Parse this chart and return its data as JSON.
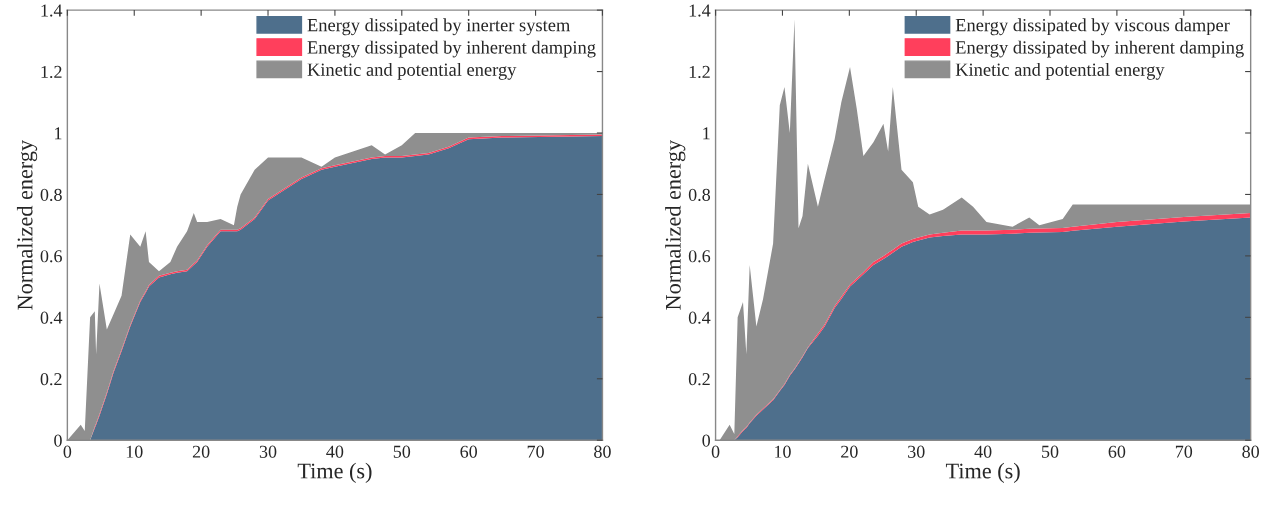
{
  "chart_data": [
    {
      "type": "area",
      "stacked": true,
      "xlabel": "Time (s)",
      "ylabel": "Normalized energy",
      "legend": "top right",
      "x": [
        0,
        2,
        2.6,
        3.4,
        4.1,
        4.3,
        4.8,
        5.9,
        6.9,
        8.1,
        9.4,
        10.9,
        11.7,
        12.2,
        13.7,
        15.4,
        16.4,
        17.9,
        18.9,
        19.4,
        20.9,
        22.9,
        24.9,
        25.4,
        25.9,
        28,
        30,
        35,
        38,
        40,
        45.5,
        47.5,
        50,
        52,
        54,
        57,
        60,
        65,
        80
      ],
      "series": [
        {
          "name": "Energy dissipated by inerter system",
          "color": "#4e6f8c",
          "values": [
            0,
            0,
            0,
            0,
            0.04,
            0.05,
            0.08,
            0.15,
            0.22,
            0.29,
            0.37,
            0.45,
            0.48,
            0.5,
            0.53,
            0.54,
            0.545,
            0.55,
            0.57,
            0.58,
            0.63,
            0.68,
            0.68,
            0.68,
            0.685,
            0.72,
            0.78,
            0.85,
            0.88,
            0.89,
            0.915,
            0.92,
            0.92,
            0.925,
            0.93,
            0.95,
            0.98,
            0.985,
            0.99
          ]
        },
        {
          "name": "Energy dissipated by inherent damping",
          "color": "#ff3f5c",
          "values": [
            0,
            0,
            0,
            0,
            0.005,
            0.005,
            0.005,
            0.005,
            0.005,
            0.005,
            0.005,
            0.005,
            0.005,
            0.005,
            0.005,
            0.005,
            0.005,
            0.005,
            0.005,
            0.005,
            0.005,
            0.005,
            0.005,
            0.005,
            0.005,
            0.005,
            0.005,
            0.005,
            0.005,
            0.005,
            0.005,
            0.005,
            0.005,
            0.005,
            0.005,
            0.005,
            0.005,
            0.005,
            0.005
          ]
        },
        {
          "name": "Kinetic and potential energy",
          "color": "#8f8f8f",
          "values": [
            0,
            0.05,
            0.03,
            0.4,
            0.375,
            0.225,
            0.425,
            0.205,
            0.185,
            0.175,
            0.295,
            0.175,
            0.195,
            0.075,
            0.015,
            0.035,
            0.08,
            0.125,
            0.165,
            0.125,
            0.075,
            0.035,
            0.015,
            0.075,
            0.11,
            0.155,
            0.135,
            0.065,
            0.005,
            0.025,
            0.04,
            0.005,
            0.035,
            0.07,
            0.065,
            0.045,
            0.015,
            0.01,
            0.005
          ]
        }
      ],
      "xlim": [
        0,
        80
      ],
      "ylim": [
        0,
        1.4
      ],
      "xticks": [
        0,
        10,
        20,
        30,
        40,
        50,
        60,
        70,
        80
      ],
      "yticks": [
        0,
        0.2,
        0.4,
        0.6,
        0.8,
        1,
        1.2,
        1.4
      ]
    },
    {
      "type": "area",
      "stacked": true,
      "xlabel": "Time (s)",
      "ylabel": "Normalized energy",
      "legend": "top right",
      "x": [
        0,
        0.6,
        2.1,
        2.8,
        3.3,
        4.1,
        4.6,
        5.1,
        6.1,
        7.1,
        8.6,
        9.6,
        10.3,
        11.1,
        11.8,
        12.4,
        13.0,
        13.8,
        15.3,
        16.3,
        17.8,
        18.8,
        20.1,
        21.1,
        22.1,
        23.6,
        25.1,
        25.8,
        26.5,
        27.8,
        29.5,
        30.3,
        32,
        34,
        36.8,
        38.5,
        40.5,
        44.4,
        46.9,
        48.4,
        51.9,
        53.4,
        60,
        70,
        80
      ],
      "series": [
        {
          "name": "Energy dissipated by viscous damper",
          "color": "#4e6f8c",
          "values": [
            0,
            0,
            0,
            0,
            0.01,
            0.03,
            0.04,
            0.055,
            0.08,
            0.1,
            0.13,
            0.16,
            0.18,
            0.21,
            0.23,
            0.25,
            0.27,
            0.3,
            0.34,
            0.37,
            0.43,
            0.46,
            0.5,
            0.52,
            0.54,
            0.57,
            0.59,
            0.6,
            0.61,
            0.63,
            0.645,
            0.65,
            0.66,
            0.665,
            0.67,
            0.67,
            0.67,
            0.672,
            0.675,
            0.676,
            0.678,
            0.682,
            0.695,
            0.712,
            0.725
          ]
        },
        {
          "name": "Energy dissipated by inherent damping",
          "color": "#ff3f5c",
          "values": [
            0,
            0,
            0,
            0,
            0.003,
            0.003,
            0.003,
            0.003,
            0.003,
            0.003,
            0.003,
            0.003,
            0.003,
            0.003,
            0.003,
            0.003,
            0.003,
            0.003,
            0.007,
            0.007,
            0.007,
            0.007,
            0.007,
            0.007,
            0.007,
            0.01,
            0.01,
            0.01,
            0.01,
            0.01,
            0.01,
            0.01,
            0.01,
            0.01,
            0.013,
            0.013,
            0.013,
            0.013,
            0.013,
            0.013,
            0.013,
            0.013,
            0.015,
            0.015,
            0.015
          ]
        },
        {
          "name": "Kinetic and potential energy",
          "color": "#8f8f8f",
          "values": [
            0,
            0,
            0.05,
            0.02,
            0.387,
            0.417,
            0.237,
            0.512,
            0.287,
            0.357,
            0.507,
            0.927,
            0.967,
            0.787,
            1.137,
            0.437,
            0.457,
            0.597,
            0.413,
            0.473,
            0.543,
            0.633,
            0.708,
            0.553,
            0.378,
            0.39,
            0.43,
            0.33,
            0.53,
            0.24,
            0.185,
            0.1,
            0.065,
            0.075,
            0.107,
            0.077,
            0.027,
            0.01,
            0.037,
            0.011,
            0.029,
            0.072,
            0.057,
            0.04,
            0.027
          ]
        }
      ],
      "xlim": [
        0,
        80
      ],
      "ylim": [
        0,
        1.4
      ],
      "xticks": [
        0,
        10,
        20,
        30,
        40,
        50,
        60,
        70,
        80
      ],
      "yticks": [
        0,
        0.2,
        0.4,
        0.6,
        0.8,
        1,
        1.2,
        1.4
      ]
    }
  ]
}
